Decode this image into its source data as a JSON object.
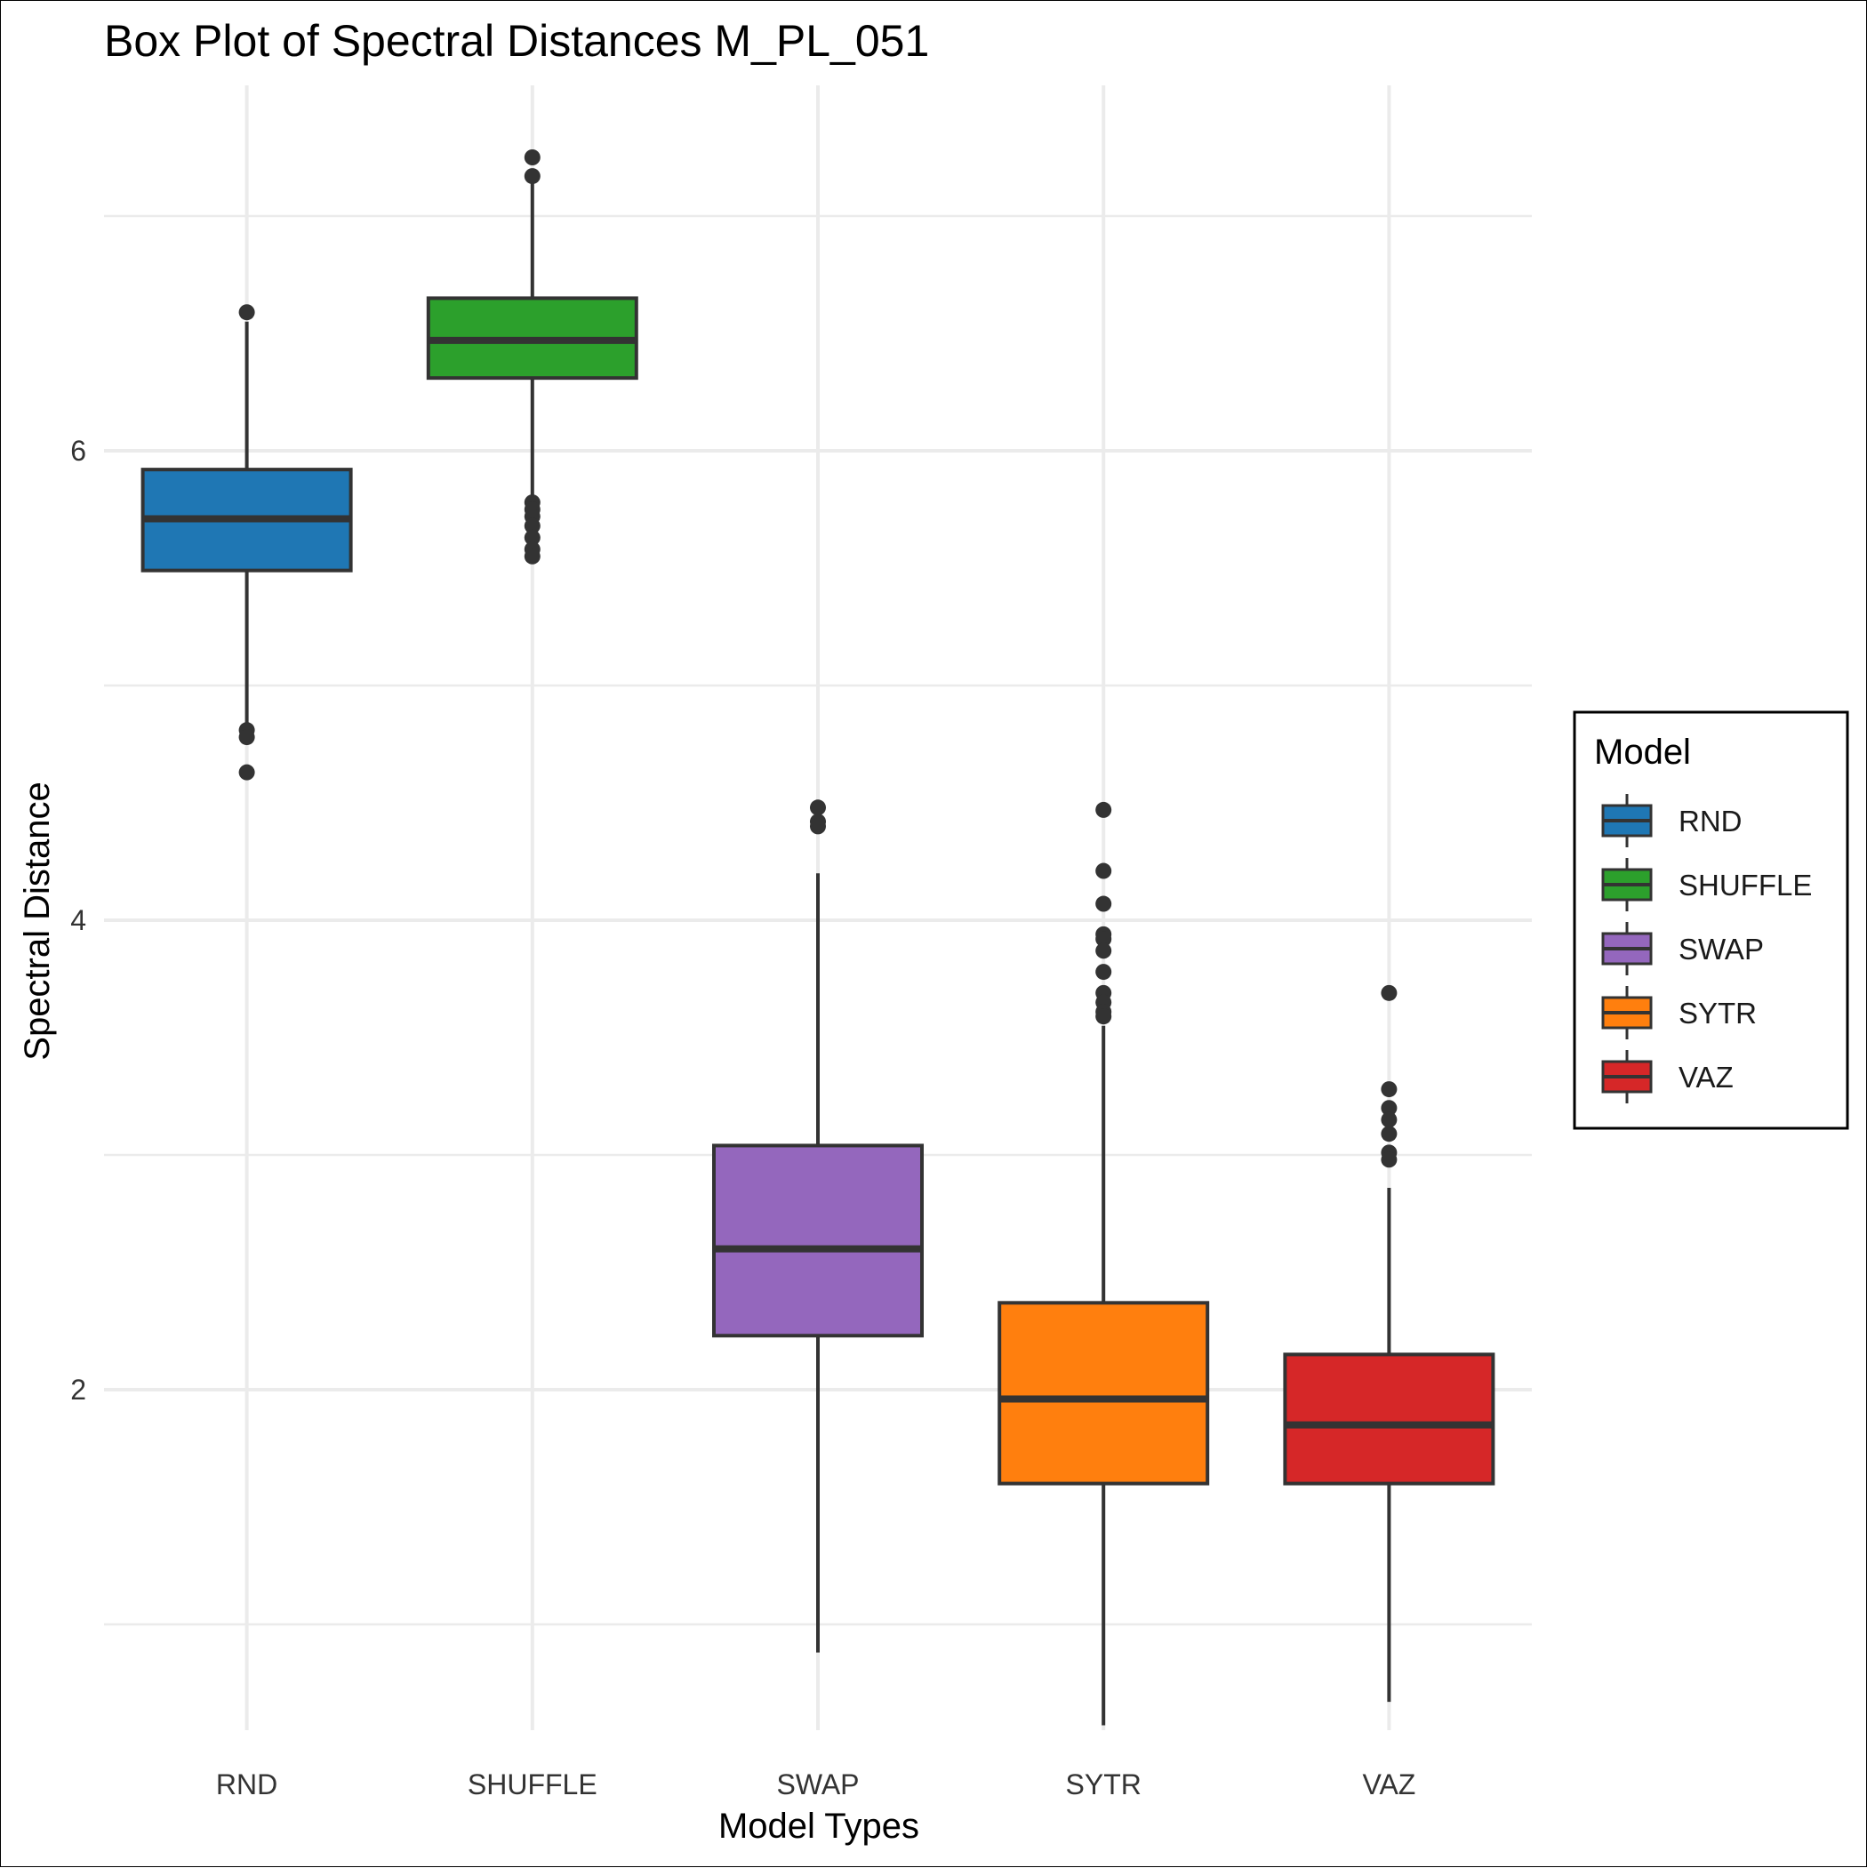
{
  "chart_data": {
    "type": "box",
    "title": "Box Plot of Spectral Distances M_PL_051",
    "xlabel": "Model Types",
    "ylabel": "Spectral Distance",
    "ylim": [
      0.3,
      7.35
    ],
    "yticks": [
      2,
      4,
      6
    ],
    "grid": true,
    "legend": {
      "title": "Model",
      "placement": "right",
      "entries": [
        "RND",
        "SHUFFLE",
        "SWAP",
        "SYTR",
        "VAZ"
      ]
    },
    "categories": [
      "RND",
      "SHUFFLE",
      "SWAP",
      "SYTR",
      "VAZ"
    ],
    "series": [
      {
        "name": "RND",
        "color": "#1f77b4",
        "whisker_low": 4.8,
        "q1": 5.49,
        "median": 5.71,
        "q3": 5.92,
        "whisker_high": 6.55,
        "outliers": [
          6.59,
          4.81,
          4.78,
          4.63
        ]
      },
      {
        "name": "SHUFFLE",
        "color": "#2ca02c",
        "whisker_low": 5.8,
        "q1": 6.31,
        "median": 6.47,
        "q3": 6.65,
        "whisker_high": 7.16,
        "outliers": [
          7.25,
          7.17,
          5.78,
          5.75,
          5.72,
          5.68,
          5.63,
          5.58,
          5.55
        ]
      },
      {
        "name": "SWAP",
        "color": "#9467bd",
        "whisker_low": 0.88,
        "q1": 2.23,
        "median": 2.6,
        "q3": 3.04,
        "whisker_high": 4.2,
        "outliers": [
          4.48,
          4.42,
          4.4
        ]
      },
      {
        "name": "SYTR",
        "color": "#ff7f0e",
        "whisker_low": 0.57,
        "q1": 1.6,
        "median": 1.96,
        "q3": 2.37,
        "whisker_high": 3.55,
        "outliers": [
          4.47,
          4.21,
          4.07,
          3.94,
          3.92,
          3.87,
          3.78,
          3.69,
          3.65,
          3.61,
          3.59
        ]
      },
      {
        "name": "VAZ",
        "color": "#d62728",
        "whisker_low": 0.67,
        "q1": 1.6,
        "median": 1.85,
        "q3": 2.15,
        "whisker_high": 2.86,
        "outliers": [
          3.69,
          3.28,
          3.2,
          3.15,
          3.09,
          3.01,
          2.98
        ]
      }
    ]
  }
}
